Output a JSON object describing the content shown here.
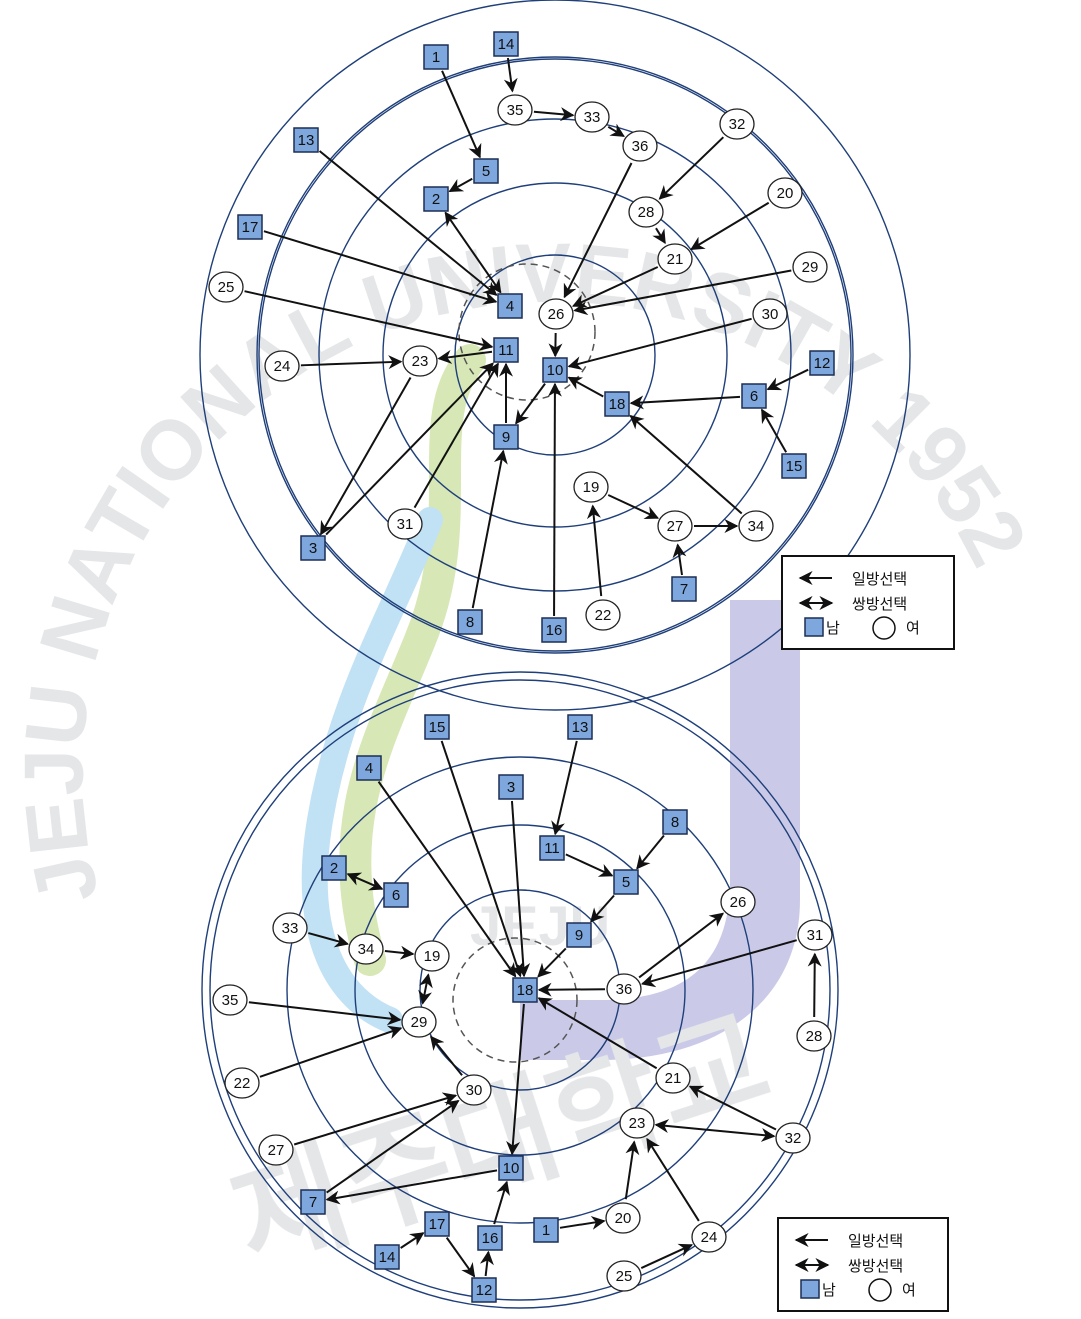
{
  "watermark": {
    "arc_text": "JEJU NATIONAL UNIVERSITY 1952",
    "center_text": "JEJU",
    "korean_text": "제주대학교",
    "colors": {
      "green": "#b7d47a",
      "blue": "#8fc8ec",
      "purple": "#9f9fd6",
      "letters": "#c9ccd1"
    }
  },
  "legend": {
    "one_way": "일방선택",
    "mutual": "쌍방선택",
    "male": "남",
    "female": "여"
  },
  "colors": {
    "ring": "#1f3f7a",
    "male_fill": "#7ea7dd",
    "male_border": "#1c2f55",
    "female_fill": "#ffffff",
    "edge": "#111111"
  },
  "diagrams": [
    {
      "id": "top",
      "nodes": [
        {
          "id": "1",
          "gender": "male"
        },
        {
          "id": "14",
          "gender": "male"
        },
        {
          "id": "35",
          "gender": "female"
        },
        {
          "id": "33",
          "gender": "female"
        },
        {
          "id": "36",
          "gender": "female"
        },
        {
          "id": "32",
          "gender": "female"
        },
        {
          "id": "13",
          "gender": "male"
        },
        {
          "id": "5",
          "gender": "male"
        },
        {
          "id": "2",
          "gender": "male"
        },
        {
          "id": "28",
          "gender": "female"
        },
        {
          "id": "20",
          "gender": "female"
        },
        {
          "id": "17",
          "gender": "male"
        },
        {
          "id": "21",
          "gender": "female"
        },
        {
          "id": "29",
          "gender": "female"
        },
        {
          "id": "25",
          "gender": "female"
        },
        {
          "id": "4",
          "gender": "male"
        },
        {
          "id": "26",
          "gender": "female"
        },
        {
          "id": "30",
          "gender": "female"
        },
        {
          "id": "24",
          "gender": "female"
        },
        {
          "id": "23",
          "gender": "female"
        },
        {
          "id": "11",
          "gender": "male"
        },
        {
          "id": "10",
          "gender": "male"
        },
        {
          "id": "12",
          "gender": "male"
        },
        {
          "id": "6",
          "gender": "male"
        },
        {
          "id": "18",
          "gender": "male"
        },
        {
          "id": "9",
          "gender": "male"
        },
        {
          "id": "15",
          "gender": "male"
        },
        {
          "id": "19",
          "gender": "female"
        },
        {
          "id": "31",
          "gender": "female"
        },
        {
          "id": "27",
          "gender": "female"
        },
        {
          "id": "34",
          "gender": "female"
        },
        {
          "id": "3",
          "gender": "male"
        },
        {
          "id": "7",
          "gender": "male"
        },
        {
          "id": "8",
          "gender": "male"
        },
        {
          "id": "16",
          "gender": "male"
        },
        {
          "id": "22",
          "gender": "female"
        }
      ],
      "edges": [
        {
          "from": "1",
          "to": "5",
          "type": "one-way"
        },
        {
          "from": "14",
          "to": "35",
          "type": "one-way"
        },
        {
          "from": "35",
          "to": "33",
          "type": "one-way"
        },
        {
          "from": "33",
          "to": "36",
          "type": "one-way"
        },
        {
          "from": "5",
          "to": "2",
          "type": "one-way"
        },
        {
          "from": "2",
          "to": "4",
          "type": "mutual"
        },
        {
          "from": "13",
          "to": "4",
          "type": "one-way"
        },
        {
          "from": "17",
          "to": "4",
          "type": "one-way"
        },
        {
          "from": "25",
          "to": "11",
          "type": "one-way"
        },
        {
          "from": "36",
          "to": "26",
          "type": "one-way"
        },
        {
          "from": "32",
          "to": "28",
          "type": "one-way"
        },
        {
          "from": "28",
          "to": "21",
          "type": "one-way"
        },
        {
          "from": "20",
          "to": "21",
          "type": "one-way"
        },
        {
          "from": "21",
          "to": "26",
          "type": "one-way"
        },
        {
          "from": "29",
          "to": "26",
          "type": "one-way"
        },
        {
          "from": "26",
          "to": "10",
          "type": "one-way"
        },
        {
          "from": "30",
          "to": "10",
          "type": "one-way"
        },
        {
          "from": "24",
          "to": "23",
          "type": "one-way"
        },
        {
          "from": "11",
          "to": "23",
          "type": "one-way"
        },
        {
          "from": "23",
          "to": "3",
          "type": "one-way"
        },
        {
          "from": "3",
          "to": "11",
          "type": "one-way"
        },
        {
          "from": "31",
          "to": "11",
          "type": "one-way"
        },
        {
          "from": "9",
          "to": "11",
          "type": "one-way"
        },
        {
          "from": "10",
          "to": "9",
          "type": "one-way"
        },
        {
          "from": "8",
          "to": "9",
          "type": "one-way"
        },
        {
          "from": "16",
          "to": "10",
          "type": "one-way"
        },
        {
          "from": "18",
          "to": "10",
          "type": "one-way"
        },
        {
          "from": "6",
          "to": "18",
          "type": "one-way"
        },
        {
          "from": "12",
          "to": "6",
          "type": "one-way"
        },
        {
          "from": "15",
          "to": "6",
          "type": "one-way"
        },
        {
          "from": "34",
          "to": "18",
          "type": "one-way"
        },
        {
          "from": "19",
          "to": "27",
          "type": "one-way"
        },
        {
          "from": "27",
          "to": "34",
          "type": "one-way"
        },
        {
          "from": "7",
          "to": "27",
          "type": "one-way"
        },
        {
          "from": "22",
          "to": "19",
          "type": "one-way"
        }
      ]
    },
    {
      "id": "bottom",
      "nodes": [
        {
          "id": "15",
          "gender": "male"
        },
        {
          "id": "13",
          "gender": "male"
        },
        {
          "id": "4",
          "gender": "male"
        },
        {
          "id": "3",
          "gender": "male"
        },
        {
          "id": "8",
          "gender": "male"
        },
        {
          "id": "11",
          "gender": "male"
        },
        {
          "id": "5",
          "gender": "male"
        },
        {
          "id": "2",
          "gender": "male"
        },
        {
          "id": "6",
          "gender": "male"
        },
        {
          "id": "26",
          "gender": "female"
        },
        {
          "id": "9",
          "gender": "male"
        },
        {
          "id": "33",
          "gender": "female"
        },
        {
          "id": "34",
          "gender": "female"
        },
        {
          "id": "19",
          "gender": "female"
        },
        {
          "id": "31",
          "gender": "female"
        },
        {
          "id": "18",
          "gender": "male"
        },
        {
          "id": "36",
          "gender": "female"
        },
        {
          "id": "35",
          "gender": "female"
        },
        {
          "id": "29",
          "gender": "female"
        },
        {
          "id": "28",
          "gender": "female"
        },
        {
          "id": "22",
          "gender": "female"
        },
        {
          "id": "21",
          "gender": "female"
        },
        {
          "id": "30",
          "gender": "female"
        },
        {
          "id": "23",
          "gender": "female"
        },
        {
          "id": "32",
          "gender": "female"
        },
        {
          "id": "27",
          "gender": "female"
        },
        {
          "id": "10",
          "gender": "male"
        },
        {
          "id": "7",
          "gender": "male"
        },
        {
          "id": "1",
          "gender": "male"
        },
        {
          "id": "20",
          "gender": "female"
        },
        {
          "id": "17",
          "gender": "male"
        },
        {
          "id": "24",
          "gender": "female"
        },
        {
          "id": "16",
          "gender": "male"
        },
        {
          "id": "14",
          "gender": "male"
        },
        {
          "id": "25",
          "gender": "female"
        },
        {
          "id": "12",
          "gender": "male"
        }
      ],
      "edges": [
        {
          "from": "15",
          "to": "18",
          "type": "one-way"
        },
        {
          "from": "4",
          "to": "18",
          "type": "one-way"
        },
        {
          "from": "3",
          "to": "18",
          "type": "one-way"
        },
        {
          "from": "13",
          "to": "11",
          "type": "one-way"
        },
        {
          "from": "11",
          "to": "5",
          "type": "one-way"
        },
        {
          "from": "8",
          "to": "5",
          "type": "one-way"
        },
        {
          "from": "5",
          "to": "9",
          "type": "one-way"
        },
        {
          "from": "9",
          "to": "18",
          "type": "one-way"
        },
        {
          "from": "2",
          "to": "6",
          "type": "mutual"
        },
        {
          "from": "36",
          "to": "18",
          "type": "one-way"
        },
        {
          "from": "36",
          "to": "26",
          "type": "one-way"
        },
        {
          "from": "31",
          "to": "36",
          "type": "one-way"
        },
        {
          "from": "28",
          "to": "31",
          "type": "one-way"
        },
        {
          "from": "21",
          "to": "18",
          "type": "one-way"
        },
        {
          "from": "32",
          "to": "21",
          "type": "one-way"
        },
        {
          "from": "33",
          "to": "34",
          "type": "one-way"
        },
        {
          "from": "34",
          "to": "19",
          "type": "one-way"
        },
        {
          "from": "19",
          "to": "29",
          "type": "mutual"
        },
        {
          "from": "35",
          "to": "29",
          "type": "one-way"
        },
        {
          "from": "22",
          "to": "29",
          "type": "one-way"
        },
        {
          "from": "30",
          "to": "29",
          "type": "one-way"
        },
        {
          "from": "27",
          "to": "30",
          "type": "one-way"
        },
        {
          "from": "7",
          "to": "30",
          "type": "one-way"
        },
        {
          "from": "18",
          "to": "10",
          "type": "one-way"
        },
        {
          "from": "10",
          "to": "7",
          "type": "one-way"
        },
        {
          "from": "16",
          "to": "10",
          "type": "one-way"
        },
        {
          "from": "14",
          "to": "17",
          "type": "one-way"
        },
        {
          "from": "17",
          "to": "12",
          "type": "one-way"
        },
        {
          "from": "12",
          "to": "16",
          "type": "one-way"
        },
        {
          "from": "1",
          "to": "20",
          "type": "one-way"
        },
        {
          "from": "20",
          "to": "23",
          "type": "one-way"
        },
        {
          "from": "23",
          "to": "32",
          "type": "mutual"
        },
        {
          "from": "24",
          "to": "23",
          "type": "one-way"
        },
        {
          "from": "25",
          "to": "24",
          "type": "one-way"
        }
      ]
    }
  ]
}
